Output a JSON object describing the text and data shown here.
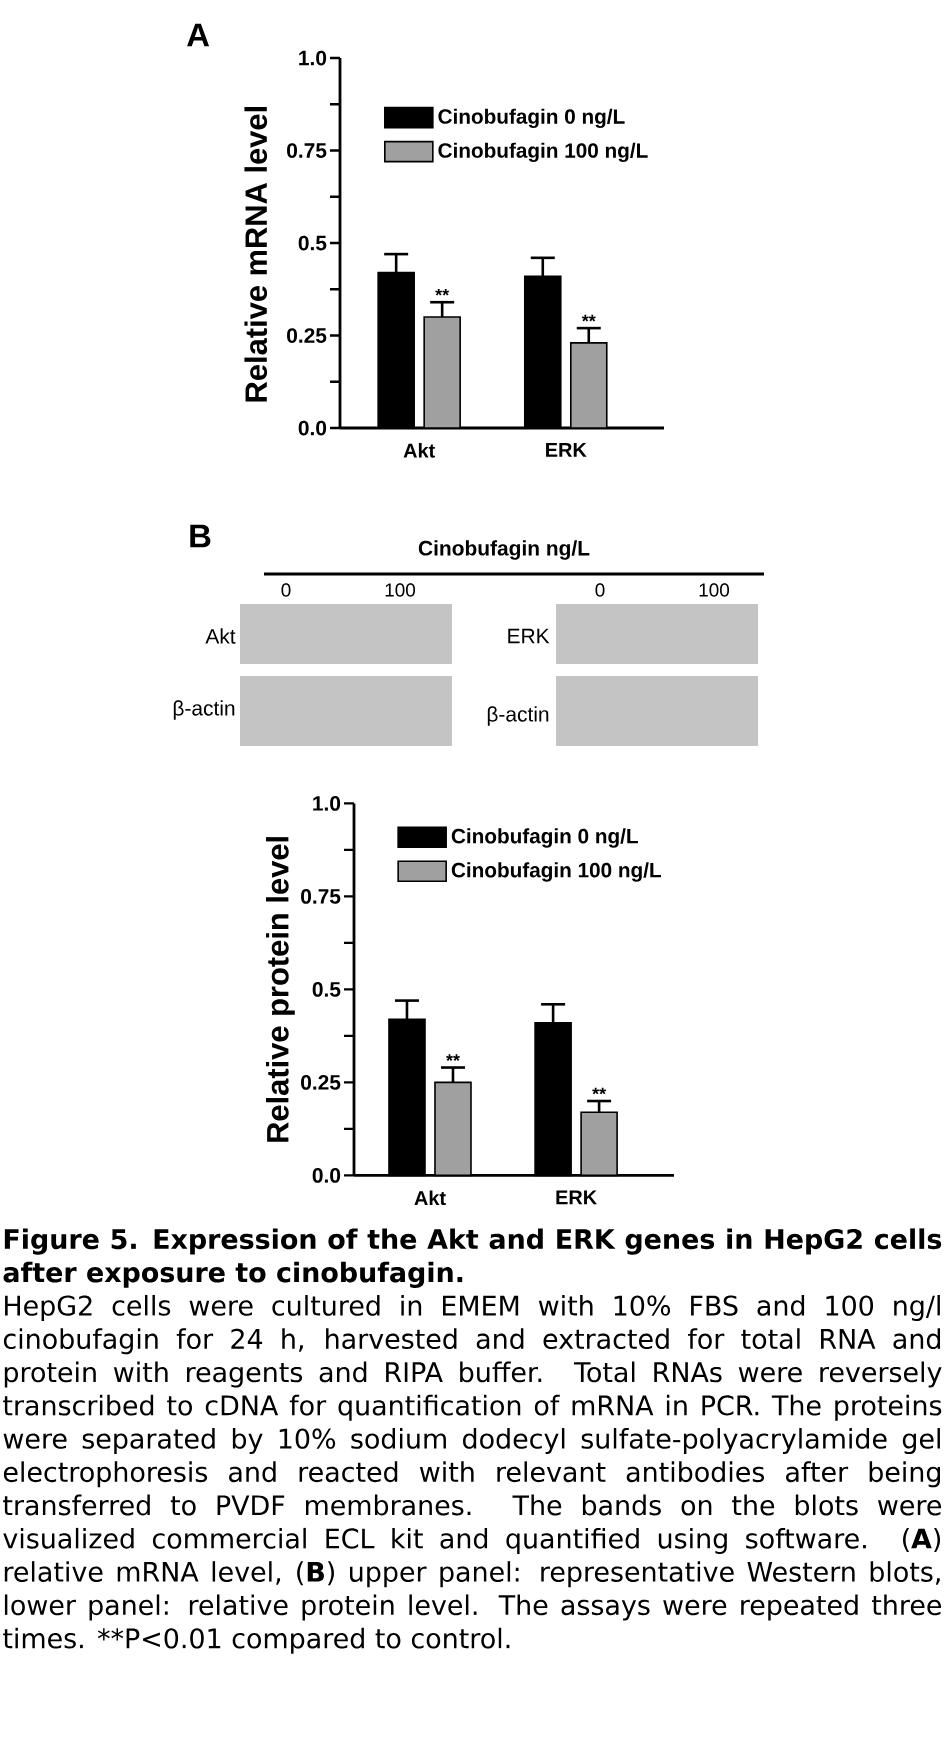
{
  "chart_data": [
    {
      "type": "bar",
      "title": "A",
      "ylabel": "Relative mRNA level",
      "categories": [
        "Akt",
        "ERK"
      ],
      "series": [
        {
          "name": "Cinobufagin 0 ng/L",
          "color": "#000000",
          "values": [
            0.42,
            0.41
          ],
          "errors": [
            [
              0.42,
              0.47
            ],
            [
              0.41,
              0.46
            ]
          ]
        },
        {
          "name": "Cinobufagin 100 ng/L",
          "color": "#a0a0a0",
          "values": [
            0.3,
            0.23
          ],
          "errors": [
            [
              0.3,
              0.34
            ],
            [
              0.23,
              0.27
            ]
          ]
        }
      ],
      "ylim": [
        0,
        1
      ],
      "yticks": [
        {
          "value": 0,
          "label": "0.0"
        },
        {
          "value": 0.125,
          "label": null
        },
        0.25,
        {
          "value": 0.375,
          "label": null
        },
        0.5,
        {
          "value": 0.625,
          "label": null
        },
        0.75,
        {
          "value": 0.875,
          "label": null
        },
        {
          "value": 1,
          "label": "1.0"
        }
      ],
      "legend": "top right",
      "annotations": [
        {
          "text": "**",
          "x": "Akt",
          "y": 0.34
        },
        {
          "text": "**",
          "x": "ERK",
          "y": 0.27
        }
      ]
    },
    {
      "type": "other",
      "title": "B",
      "annotations": [
        "Cinobufagin ng/L",
        "0",
        "100",
        "0",
        "100",
        "Akt",
        "β-actin",
        "ERK",
        "β-actin"
      ]
    },
    {
      "type": "bar",
      "ylabel": "Relative protein level",
      "categories": [
        "Akt",
        "ERK"
      ],
      "series": [
        {
          "name": "Cinobufagin 0 ng/L",
          "color": "#000000",
          "values": [
            0.42,
            0.41
          ],
          "errors": [
            [
              0.42,
              0.47
            ],
            [
              0.41,
              0.46
            ]
          ]
        },
        {
          "name": "Cinobufagin 100 ng/L",
          "color": "#a0a0a0",
          "values": [
            0.25,
            0.17
          ],
          "errors": [
            [
              0.25,
              0.29
            ],
            [
              0.17,
              0.2
            ]
          ]
        }
      ],
      "ylim": [
        0,
        1
      ],
      "yticks": [
        {
          "value": 0,
          "label": "0.0"
        },
        {
          "value": 0.125,
          "label": null
        },
        0.25,
        {
          "value": 0.375,
          "label": null
        },
        0.5,
        {
          "value": 0.625,
          "label": null
        },
        0.75,
        {
          "value": 0.875,
          "label": null
        },
        {
          "value": 1,
          "label": "1.0"
        }
      ],
      "legend": "top right",
      "annotations": [
        {
          "text": "**",
          "x": "Akt",
          "y": 0.29
        },
        {
          "text": "**",
          "x": "ERK",
          "y": 0.2
        }
      ]
    },
    {
      "type": "other",
      "title": "Figure 5. Expression of the Akt and ERK genes in HepG2 cells after exposure to cinobufagin.",
      "annotations": [
        "HepG2 cells were cultured in EMEM with 10% FBS and 100 ng/l cinobufagin for 24 h, harvested and extracted for total RNA and protein with reagents and RIPA buffer. Total RNAs were reversely transcribed to cDNA for quantification of mRNA in PCR. The proteins were separated by 10% sodium dodecyl sulfate-polyacrylamide gel electrophoresis and reacted with relevant antibodies after being transferred to PVDF membranes. The bands on the blots were visualized commercial ECL kit and quantified using software. (**A**) relative mRNA level, (**B**) upper panel: representative Western blots, lower panel: relative protein level. The assays were repeated three times. **P<0.01 compared to control."
      ]
    }
  ]
}
